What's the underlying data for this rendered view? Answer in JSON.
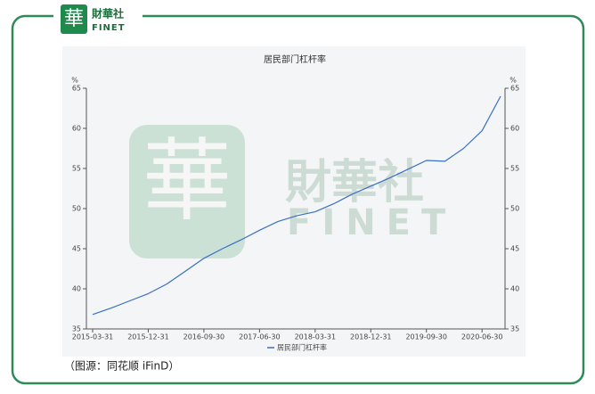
{
  "logo": {
    "mark": "華",
    "name": "財華社",
    "sub": "FINET"
  },
  "chart_data": {
    "type": "line",
    "title": "居民部门杠杆率",
    "categories": [
      "2015-03-31",
      null,
      null,
      "2015-12-31",
      null,
      null,
      "2016-09-30",
      null,
      null,
      "2017-06-30",
      null,
      null,
      "2018-03-31",
      null,
      null,
      "2018-12-31",
      null,
      null,
      "2019-09-30",
      null,
      null,
      "2020-06-30",
      null
    ],
    "series": [
      {
        "name": "居民部门杠杆率",
        "color": "#3a6fc4",
        "values": [
          36.8,
          37.6,
          38.5,
          39.4,
          40.6,
          42.2,
          43.8,
          45.0,
          46.1,
          47.3,
          48.4,
          49.1,
          49.6,
          50.6,
          51.8,
          52.8,
          53.8,
          54.9,
          56.0,
          55.9,
          57.5,
          59.7,
          64.0
        ]
      }
    ],
    "y_label": "%",
    "y2_label": "%",
    "ylim": [
      35,
      65
    ],
    "yticks": [
      35,
      40,
      45,
      50,
      55,
      60,
      65
    ],
    "y2lim": [
      35,
      65
    ],
    "y2ticks": [
      35,
      40,
      45,
      50,
      55,
      60,
      65
    ],
    "legend": "bottom"
  },
  "caption": "（图源：同花顺 iFinD）"
}
